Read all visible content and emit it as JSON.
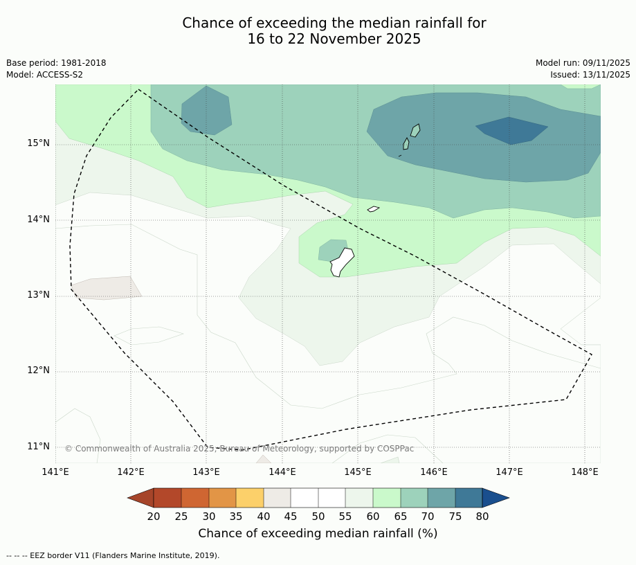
{
  "title": {
    "line1": "Chance of exceeding the median rainfall for",
    "line2": "16 to 22 November 2025"
  },
  "meta_left": {
    "base_period": "Base period: 1981-2018",
    "model": "Model: ACCESS-S2"
  },
  "meta_right": {
    "model_run": "Model run: 09/11/2025",
    "issued": "Issued: 13/11/2025"
  },
  "axes": {
    "lat_labels": [
      "15°N",
      "14°N",
      "13°N",
      "12°N",
      "11°N"
    ],
    "lon_labels": [
      "141°E",
      "142°E",
      "143°E",
      "144°E",
      "145°E",
      "146°E",
      "147°E",
      "148°E"
    ]
  },
  "copyright": "© Commonwealth of Australia 2025, Bureau of Meteorology, supported by COSPPac",
  "colorbar": {
    "ticks": [
      "20",
      "25",
      "30",
      "35",
      "40",
      "45",
      "50",
      "55",
      "60",
      "65",
      "70",
      "75",
      "80"
    ],
    "colors": {
      "below_20": "#a6452a",
      "c20_25": "#b3482a",
      "c25_30": "#cf6632",
      "c30_35": "#e29546",
      "c35_40": "#fcd06a",
      "c40_45": "#eeebe6",
      "c45_50": "#ffffff",
      "c50_55": "#ffffff",
      "c55_60": "#edf6ec",
      "c60_65": "#caf9cb",
      "c65_70": "#9dd2bb",
      "c70_75": "#6ea5a8",
      "c75_80": "#3f7997",
      "above_80": "#1a4f8e"
    },
    "label": "Chance of exceeding median rainfall (%)"
  },
  "footnote": "--  --  -- EEZ border V11 (Flanders Marine Institute, 2019)."
}
